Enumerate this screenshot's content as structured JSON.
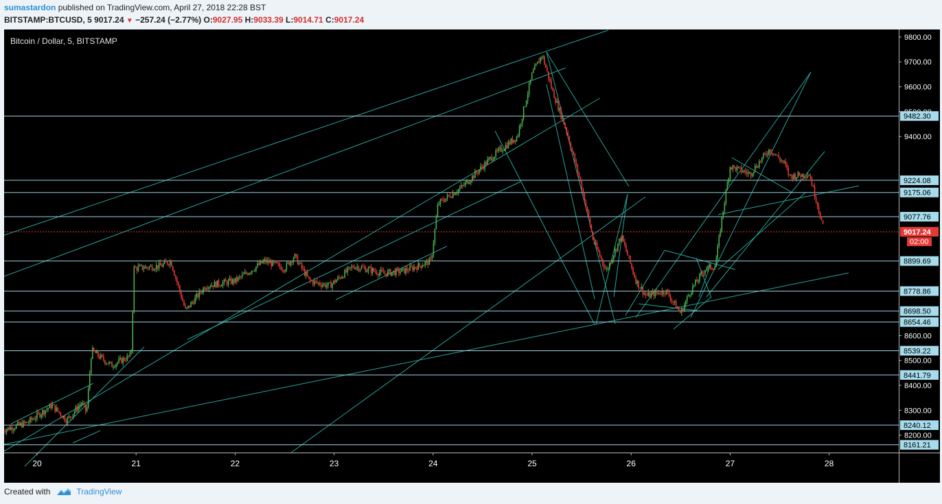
{
  "header": {
    "author": "sumastardon",
    "published_text": "published on TradingView.com, April 27, 2018 22:28 BST",
    "symbol": "BITSTAMP:BTCUSD, 5",
    "last": "9017.24",
    "change": "−257.24 (−2.77%)",
    "o_label": "O:",
    "o_value": "9027.95",
    "h_label": "H:",
    "h_value": "9033.39",
    "l_label": "L:",
    "l_value": "9014.71",
    "c_label": "C:",
    "c_value": "9017.24"
  },
  "footer": {
    "created_with": "Created with",
    "brand": "TradingView"
  },
  "colors": {
    "background": "#000000",
    "up_candle": "#4caf50",
    "down_candle": "#e53935",
    "trendline": "#26a69a",
    "level_line": "#9fd3e0",
    "level_label_bg": "#a7dcec",
    "last_price": "#e53935"
  },
  "chart_data": {
    "type": "candlestick",
    "title": "Bitcoin / Dollar, 5, BITSTAMP",
    "x_ticks": [
      "20",
      "21",
      "22",
      "23",
      "24",
      "25",
      "26",
      "27",
      "28"
    ],
    "y_ticks": [
      8200,
      8300,
      8400,
      8500,
      8600,
      9400,
      9500,
      9600,
      9700,
      9800
    ],
    "ylim": [
      8130,
      9830
    ],
    "horizontal_levels": [
      9482.3,
      9224.08,
      9175.06,
      9077.76,
      8899.69,
      8778.86,
      8698.5,
      8654.46,
      8539.22,
      8441.79,
      8240.12,
      8161.21
    ],
    "last_price": {
      "value": 9017.24,
      "label": "9017.24",
      "countdown": "02:00"
    },
    "price_path": [
      [
        -0.35,
        8220
      ],
      [
        -0.1,
        8250
      ],
      [
        0.15,
        8320
      ],
      [
        0.3,
        8260
      ],
      [
        0.45,
        8330
      ],
      [
        0.5,
        8290
      ],
      [
        0.55,
        8540
      ],
      [
        0.75,
        8480
      ],
      [
        0.95,
        8520
      ],
      [
        0.98,
        8870
      ],
      [
        1.25,
        8880
      ],
      [
        1.35,
        8900
      ],
      [
        1.5,
        8700
      ],
      [
        1.7,
        8800
      ],
      [
        2.0,
        8820
      ],
      [
        2.3,
        8900
      ],
      [
        2.5,
        8870
      ],
      [
        2.6,
        8920
      ],
      [
        2.75,
        8820
      ],
      [
        2.95,
        8800
      ],
      [
        3.2,
        8880
      ],
      [
        3.5,
        8850
      ],
      [
        3.7,
        8860
      ],
      [
        3.85,
        8880
      ],
      [
        3.98,
        8900
      ],
      [
        4.05,
        9130
      ],
      [
        4.3,
        9200
      ],
      [
        4.6,
        9320
      ],
      [
        4.85,
        9400
      ],
      [
        5.0,
        9650
      ],
      [
        5.1,
        9730
      ],
      [
        5.2,
        9590
      ],
      [
        5.35,
        9420
      ],
      [
        5.5,
        9200
      ],
      [
        5.62,
        8980
      ],
      [
        5.75,
        8860
      ],
      [
        5.9,
        9000
      ],
      [
        6.05,
        8820
      ],
      [
        6.15,
        8760
      ],
      [
        6.35,
        8780
      ],
      [
        6.5,
        8690
      ],
      [
        6.6,
        8780
      ],
      [
        6.75,
        8870
      ],
      [
        6.85,
        8880
      ],
      [
        6.92,
        9080
      ],
      [
        7.0,
        9280
      ],
      [
        7.2,
        9250
      ],
      [
        7.4,
        9350
      ],
      [
        7.55,
        9290
      ],
      [
        7.6,
        9240
      ],
      [
        7.8,
        9250
      ],
      [
        7.9,
        9100
      ],
      [
        7.95,
        9017
      ]
    ]
  }
}
